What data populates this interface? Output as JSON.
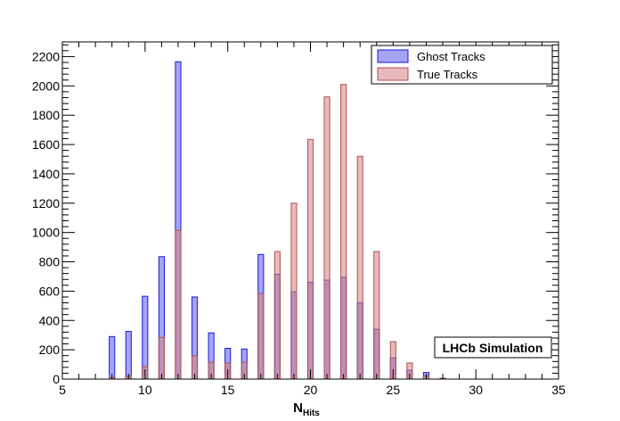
{
  "chart_data": {
    "type": "bar",
    "title": "",
    "xlabel": "N",
    "xlabel_subscript": "Hits",
    "ylabel": "",
    "xlim": [
      5,
      35
    ],
    "ylim": [
      0,
      2300
    ],
    "x_ticks": [
      "5",
      "10",
      "15",
      "20",
      "25",
      "30",
      "35"
    ],
    "y_ticks": [
      "0",
      "200",
      "400",
      "600",
      "800",
      "1000",
      "1200",
      "1400",
      "1600",
      "1800",
      "2000",
      "2200"
    ],
    "grid": false,
    "legend_position": "top-right",
    "annotation": "LHCb Simulation",
    "series": [
      {
        "name": "Ghost Tracks",
        "color": "#0000ff",
        "x": [
          8,
          9,
          10,
          11,
          12,
          13,
          14,
          15,
          16,
          17,
          18,
          19,
          20,
          21,
          22,
          23,
          24,
          25,
          26,
          27,
          28
        ],
        "values": [
          290,
          325,
          565,
          835,
          2165,
          560,
          315,
          210,
          205,
          850,
          715,
          595,
          660,
          675,
          695,
          520,
          340,
          145,
          60,
          45,
          5
        ]
      },
      {
        "name": "True Tracks",
        "color": "#cc6666",
        "x": [
          8,
          9,
          10,
          11,
          12,
          13,
          14,
          15,
          16,
          17,
          18,
          19,
          20,
          21,
          22,
          23,
          24,
          25,
          26,
          27,
          28
        ],
        "values": [
          10,
          20,
          85,
          285,
          1015,
          160,
          115,
          110,
          115,
          585,
          870,
          1200,
          1635,
          1925,
          2010,
          1520,
          870,
          255,
          110,
          20,
          5
        ]
      }
    ]
  }
}
